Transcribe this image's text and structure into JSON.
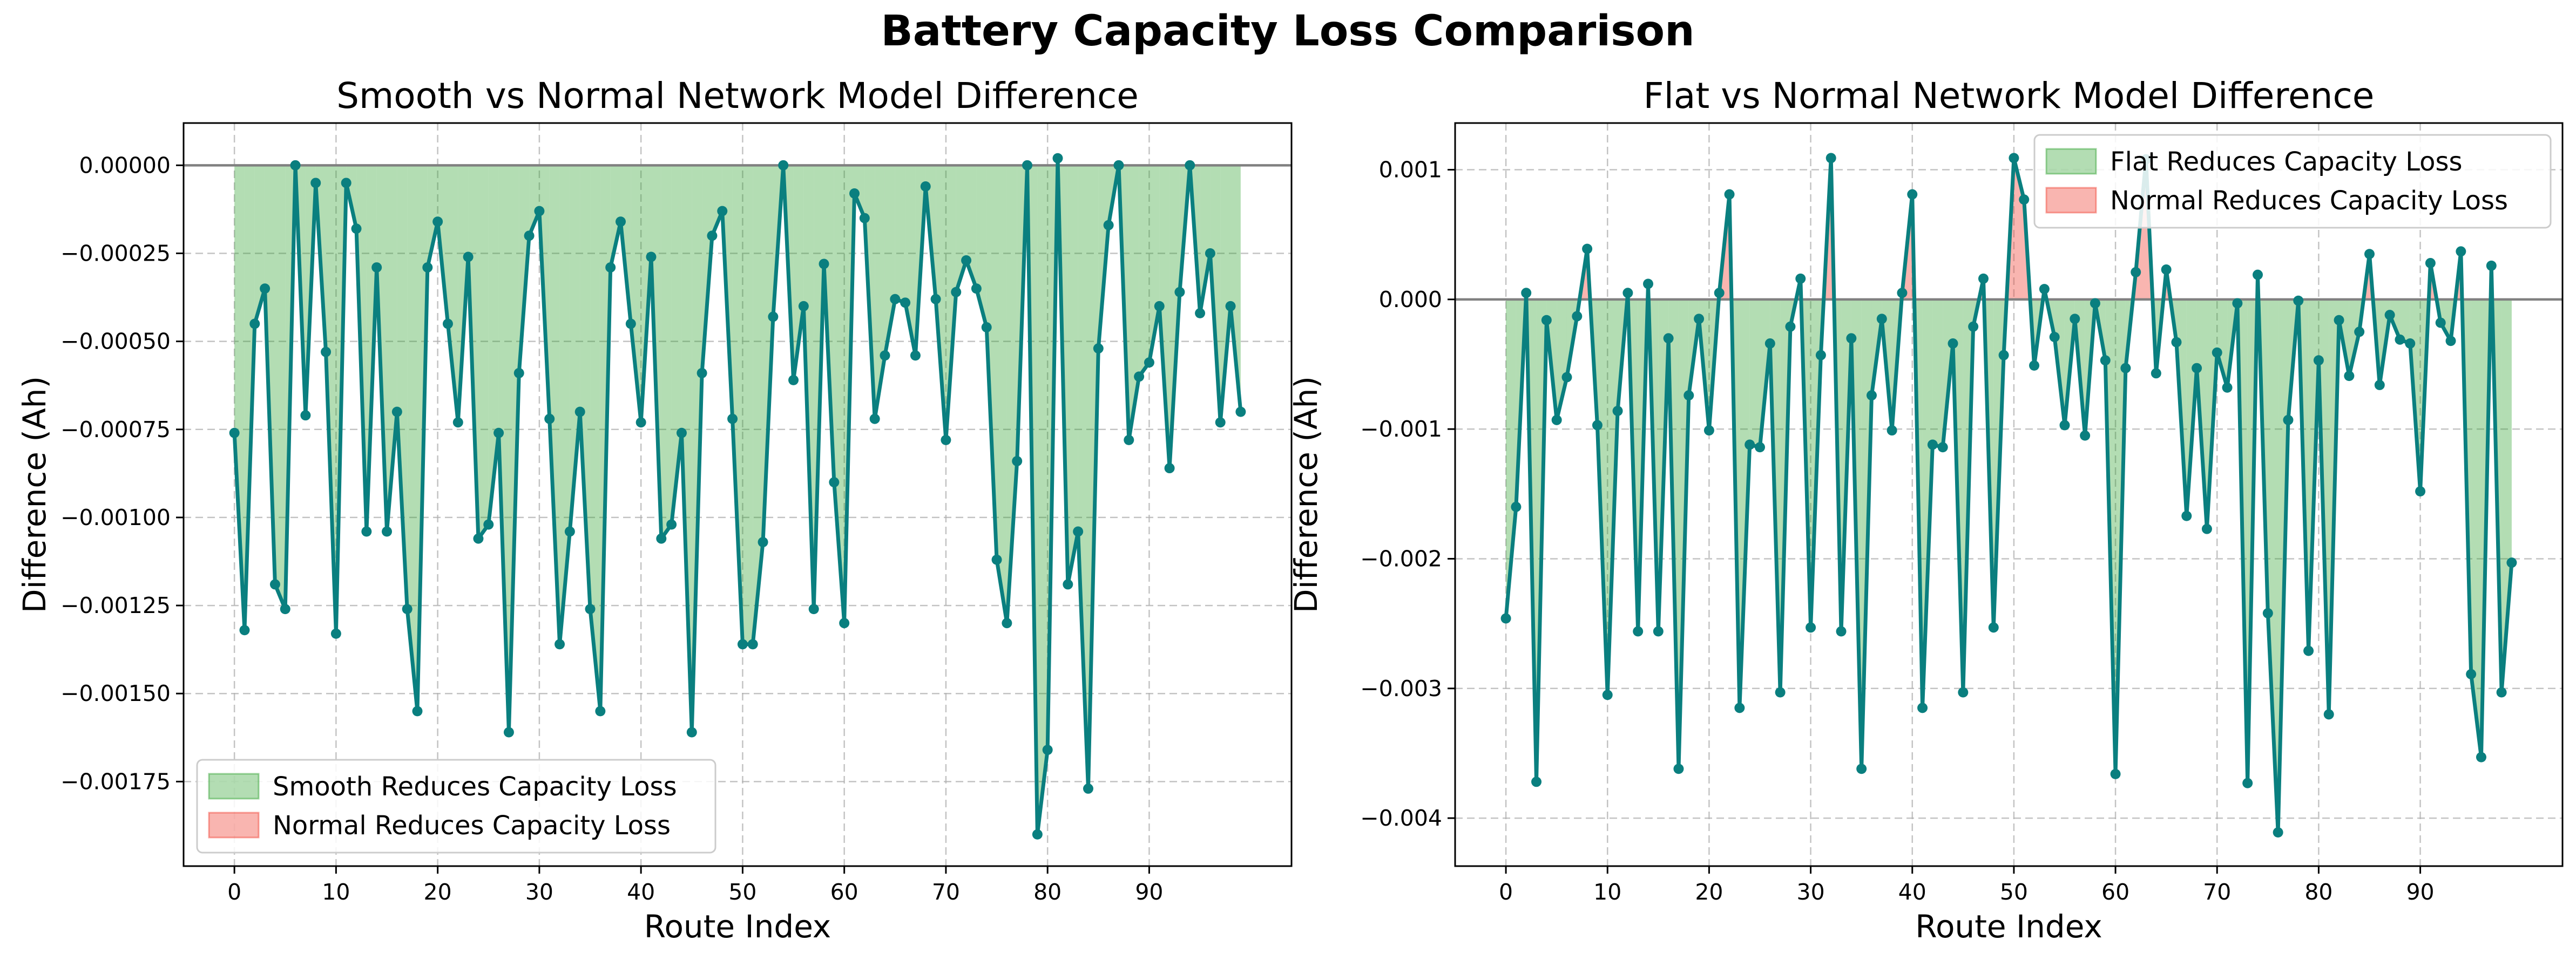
{
  "figure": {
    "title": "Battery Capacity Loss Comparison"
  },
  "colors": {
    "line": "#0a7f7f",
    "positive_fill": "#2ca02c",
    "negative_fill": "#f03c2f",
    "zero_line": "#808080",
    "grid": "#b0b0b0"
  },
  "chart_data": [
    {
      "type": "line",
      "title": "Smooth vs Normal Network Model Difference",
      "xlabel": "Route Index",
      "ylabel": "Difference (Ah)",
      "xlim": [
        -5,
        104
      ],
      "ylim": [
        -0.00199,
        0.00012
      ],
      "xticks": [
        0,
        10,
        20,
        30,
        40,
        50,
        60,
        70,
        80,
        90
      ],
      "xtick_labels": [
        "0",
        "10",
        "20",
        "30",
        "40",
        "50",
        "60",
        "70",
        "80",
        "90"
      ],
      "yticks": [
        0.0,
        -0.00025,
        -0.0005,
        -0.00075,
        -0.001,
        -0.00125,
        -0.0015,
        -0.00175
      ],
      "ytick_labels": [
        "0.00000",
        "−0.00025",
        "−0.00050",
        "−0.00075",
        "−0.00100",
        "−0.00125",
        "−0.00150",
        "−0.00175"
      ],
      "grid": true,
      "legend_position": "lower-left",
      "legend": [
        "Smooth Reduces Capacity Loss",
        "Normal Reduces Capacity Loss"
      ],
      "x": [
        0,
        1,
        2,
        3,
        4,
        5,
        6,
        7,
        8,
        9,
        10,
        11,
        12,
        13,
        14,
        15,
        16,
        17,
        18,
        19,
        20,
        21,
        22,
        23,
        24,
        25,
        26,
        27,
        28,
        29,
        30,
        31,
        32,
        33,
        34,
        35,
        36,
        37,
        38,
        39,
        40,
        41,
        42,
        43,
        44,
        45,
        46,
        47,
        48,
        49,
        50,
        51,
        52,
        53,
        54,
        55,
        56,
        57,
        58,
        59,
        60,
        61,
        62,
        63,
        64,
        65,
        66,
        67,
        68,
        69,
        70,
        71,
        72,
        73,
        74,
        75,
        76,
        77,
        78,
        79,
        80,
        81,
        82,
        83,
        84,
        85,
        86,
        87,
        88,
        89,
        90,
        91,
        92,
        93,
        94,
        95,
        96,
        97,
        98,
        99
      ],
      "y": [
        -0.00076,
        -0.00132,
        -0.00045,
        -0.00035,
        -0.00119,
        -0.00126,
        0.0,
        -0.00071,
        -5e-05,
        -0.00053,
        -0.00133,
        -5e-05,
        -0.00018,
        -0.00104,
        -0.00029,
        -0.00104,
        -0.0007,
        -0.00126,
        -0.00155,
        -0.00029,
        -0.00016,
        -0.00045,
        -0.00073,
        -0.00026,
        -0.00106,
        -0.00102,
        -0.00076,
        -0.00161,
        -0.00059,
        -0.0002,
        -0.00013,
        -0.00072,
        -0.00136,
        -0.00104,
        -0.0007,
        -0.00126,
        -0.00155,
        -0.00029,
        -0.00016,
        -0.00045,
        -0.00073,
        -0.00026,
        -0.00106,
        -0.00102,
        -0.00076,
        -0.00161,
        -0.00059,
        -0.0002,
        -0.00013,
        -0.00072,
        -0.00136,
        -0.00136,
        -0.00107,
        -0.00043,
        0.0,
        -0.00061,
        -0.0004,
        -0.00126,
        -0.00028,
        -0.0009,
        -0.0013,
        -8e-05,
        -0.00015,
        -0.00072,
        -0.00054,
        -0.00038,
        -0.00039,
        -0.00054,
        -6e-05,
        -0.00038,
        -0.00078,
        -0.00036,
        -0.00027,
        -0.00035,
        -0.00046,
        -0.00112,
        -0.0013,
        -0.00084,
        0.0,
        -0.0019,
        -0.00166,
        2e-05,
        -0.00119,
        -0.00104,
        -0.00177,
        -0.00052,
        -0.00017,
        0.0,
        -0.00078,
        -0.0006,
        -0.00056,
        -0.0004,
        -0.00086,
        -0.00036,
        0.0,
        -0.00042,
        -0.00025,
        -0.00073,
        -0.0004,
        -0.0007
      ]
    },
    {
      "type": "line",
      "title": "Flat vs Normal Network Model Difference",
      "xlabel": "Route Index",
      "ylabel": "Difference (Ah)",
      "xlim": [
        -5,
        104
      ],
      "ylim": [
        -0.00437,
        0.00136
      ],
      "xticks": [
        0,
        10,
        20,
        30,
        40,
        50,
        60,
        70,
        80,
        90
      ],
      "xtick_labels": [
        "0",
        "10",
        "20",
        "30",
        "40",
        "50",
        "60",
        "70",
        "80",
        "90"
      ],
      "yticks": [
        0.001,
        0.0,
        -0.001,
        -0.002,
        -0.003,
        -0.004
      ],
      "ytick_labels": [
        "0.001",
        "0.000",
        "−0.001",
        "−0.002",
        "−0.003",
        "−0.004"
      ],
      "grid": true,
      "legend_position": "upper-right",
      "legend": [
        "Flat Reduces Capacity Loss",
        "Normal Reduces Capacity Loss"
      ],
      "x": [
        0,
        1,
        2,
        3,
        4,
        5,
        6,
        7,
        8,
        9,
        10,
        11,
        12,
        13,
        14,
        15,
        16,
        17,
        18,
        19,
        20,
        21,
        22,
        23,
        24,
        25,
        26,
        27,
        28,
        29,
        30,
        31,
        32,
        33,
        34,
        35,
        36,
        37,
        38,
        39,
        40,
        41,
        42,
        43,
        44,
        45,
        46,
        47,
        48,
        49,
        50,
        51,
        52,
        53,
        54,
        55,
        56,
        57,
        58,
        59,
        60,
        61,
        62,
        63,
        64,
        65,
        66,
        67,
        68,
        69,
        70,
        71,
        72,
        73,
        74,
        75,
        76,
        77,
        78,
        79,
        80,
        81,
        82,
        83,
        84,
        85,
        86,
        87,
        88,
        89,
        90,
        91,
        92,
        93,
        94,
        95,
        96,
        97,
        98,
        99
      ],
      "y": [
        -0.00246,
        -0.0016,
        5e-05,
        -0.00372,
        -0.00016,
        -0.00093,
        -0.0006,
        -0.00013,
        0.00039,
        -0.00097,
        -0.00305,
        -0.00086,
        5e-05,
        -0.00256,
        0.00012,
        -0.00256,
        -0.0003,
        -0.00362,
        -0.00074,
        -0.00015,
        -0.00101,
        5e-05,
        0.00081,
        -0.00315,
        -0.00112,
        -0.00114,
        -0.00034,
        -0.00303,
        -0.00021,
        0.00016,
        -0.00253,
        -0.00043,
        0.00109,
        -0.00256,
        -0.0003,
        -0.00362,
        -0.00074,
        -0.00015,
        -0.00101,
        5e-05,
        0.00081,
        -0.00315,
        -0.00112,
        -0.00114,
        -0.00034,
        -0.00303,
        -0.00021,
        0.00016,
        -0.00253,
        -0.00043,
        0.00109,
        0.00077,
        -0.00051,
        8e-05,
        -0.00029,
        -0.00097,
        -0.00015,
        -0.00105,
        -3e-05,
        -0.00047,
        -0.00366,
        -0.00053,
        0.00021,
        0.00108,
        -0.00057,
        0.00023,
        -0.00033,
        -0.00167,
        -0.00053,
        -0.00177,
        -0.00041,
        -0.00068,
        -3e-05,
        -0.00373,
        0.00019,
        -0.00242,
        -0.00411,
        -0.00093,
        -1e-05,
        -0.00271,
        -0.00047,
        -0.0032,
        -0.00016,
        -0.00059,
        -0.00025,
        0.00035,
        -0.00066,
        -0.00012,
        -0.00031,
        -0.00034,
        -0.00148,
        0.00028,
        -0.00018,
        -0.00032,
        0.00037,
        -0.00289,
        -0.00353,
        0.00026,
        -0.00303,
        -0.00203
      ]
    }
  ]
}
